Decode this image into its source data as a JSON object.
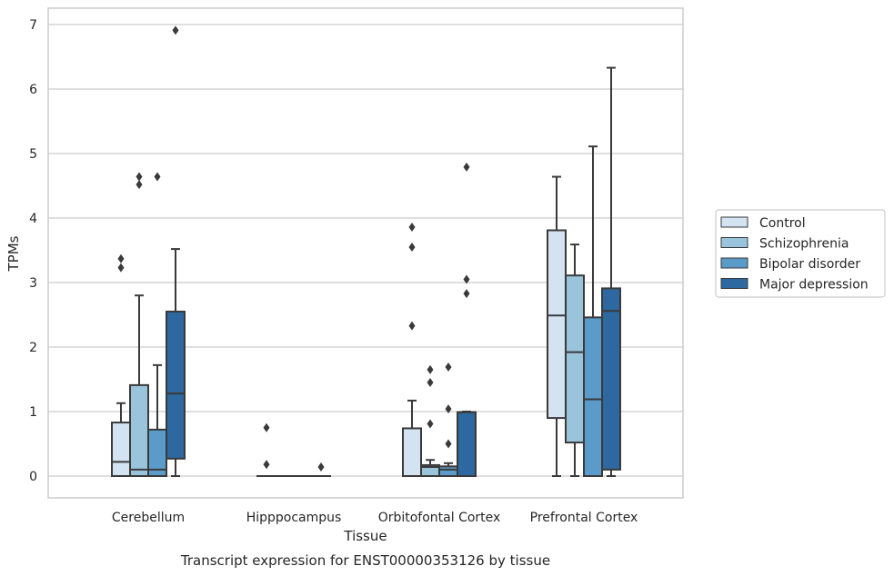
{
  "caption": "Transcript expression for ENST00000353126 by tissue",
  "chart_data": {
    "type": "box",
    "xlabel": "Tissue",
    "ylabel": "TPMs",
    "ylim": [
      -0.33,
      7.3
    ],
    "yticks": [
      0,
      1,
      2,
      3,
      4,
      5,
      6,
      7
    ],
    "grid": "horizontal",
    "legend_position": "right",
    "categories": [
      "Cerebellum",
      "Hipppocampus",
      "Orbitofontal Cortex",
      "Prefrontal Cortex"
    ],
    "series": [
      {
        "name": "Control",
        "color": "#d3e3f2",
        "boxes": [
          {
            "whislo": 0,
            "q1": 0,
            "med": 0.22,
            "q3": 0.83,
            "whishi": 1.13,
            "fliers": [
              3.23,
              3.37
            ]
          },
          {
            "whislo": 0,
            "q1": 0,
            "med": 0,
            "q3": 0,
            "whishi": 0,
            "fliers": [
              0.18,
              0.75
            ]
          },
          {
            "whislo": 0,
            "q1": 0,
            "med": 0,
            "q3": 0.74,
            "whishi": 1.17,
            "fliers": [
              2.33,
              3.55,
              3.86
            ]
          },
          {
            "whislo": 0,
            "q1": 0.9,
            "med": 2.49,
            "q3": 3.81,
            "whishi": 4.64,
            "fliers": []
          }
        ]
      },
      {
        "name": "Schizophrenia",
        "color": "#9ac4dc",
        "boxes": [
          {
            "whislo": 0,
            "q1": 0,
            "med": 0.1,
            "q3": 1.41,
            "whishi": 2.8,
            "fliers": [
              4.52,
              4.64
            ]
          },
          {
            "whislo": 0,
            "q1": 0,
            "med": 0,
            "q3": 0,
            "whishi": 0,
            "fliers": []
          },
          {
            "whislo": 0,
            "q1": 0,
            "med": 0.14,
            "q3": 0.17,
            "whishi": 0.25,
            "fliers": [
              0.81,
              1.45,
              1.65
            ]
          },
          {
            "whislo": 0,
            "q1": 0.52,
            "med": 1.92,
            "q3": 3.11,
            "whishi": 3.59,
            "fliers": []
          }
        ]
      },
      {
        "name": "Bipolar disorder",
        "color": "#5b9bc9",
        "boxes": [
          {
            "whislo": 0,
            "q1": 0,
            "med": 0.1,
            "q3": 0.72,
            "whishi": 1.72,
            "fliers": [
              4.64
            ]
          },
          {
            "whislo": 0,
            "q1": 0,
            "med": 0,
            "q3": 0,
            "whishi": 0,
            "fliers": []
          },
          {
            "whislo": 0,
            "q1": 0,
            "med": 0.1,
            "q3": 0.15,
            "whishi": 0.2,
            "fliers": [
              0.5,
              1.04,
              1.69
            ]
          },
          {
            "whislo": 0,
            "q1": 0,
            "med": 1.19,
            "q3": 2.46,
            "whishi": 5.11,
            "fliers": []
          }
        ]
      },
      {
        "name": "Major depression",
        "color": "#2d68a1",
        "boxes": [
          {
            "whislo": 0,
            "q1": 0.27,
            "med": 1.28,
            "q3": 2.55,
            "whishi": 3.52,
            "fliers": [
              6.91
            ]
          },
          {
            "whislo": 0,
            "q1": 0,
            "med": 0,
            "q3": 0,
            "whishi": 0,
            "fliers": [
              0.14
            ]
          },
          {
            "whislo": 0,
            "q1": 0,
            "med": 0.99,
            "q3": 0.99,
            "whishi": 1.0,
            "fliers": [
              2.83,
              3.05,
              4.79
            ]
          },
          {
            "whislo": 0,
            "q1": 0.1,
            "med": 2.56,
            "q3": 2.91,
            "whishi": 6.33,
            "fliers": []
          }
        ]
      }
    ]
  }
}
